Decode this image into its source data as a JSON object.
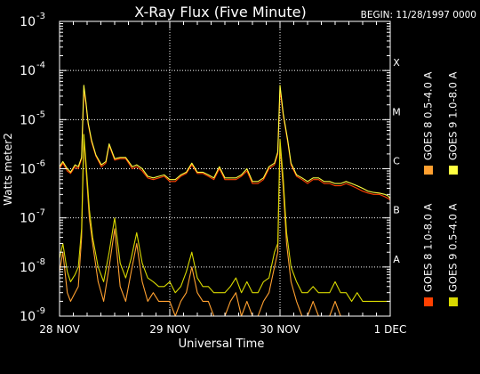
{
  "chart_data": {
    "type": "line",
    "title": "X-Ray Flux (Five Minute)",
    "begin_label": "BEGIN: 11/28/1997 0000",
    "xlabel": "Universal Time",
    "ylabel": "Watts meter2",
    "xlim": [
      0,
      3
    ],
    "ylim": [
      1e-09,
      0.001
    ],
    "yscale": "log",
    "grid": true,
    "x_ticks": [
      {
        "value": 0,
        "label": "28 NOV"
      },
      {
        "value": 1,
        "label": "29 NOV"
      },
      {
        "value": 2,
        "label": "30 NOV"
      },
      {
        "value": 3,
        "label": "1 DEC"
      }
    ],
    "y_ticks": [
      {
        "exp": -9,
        "base": "10",
        "sup": "-9"
      },
      {
        "exp": -8,
        "base": "10",
        "sup": "-8"
      },
      {
        "exp": -7,
        "base": "10",
        "sup": "-7"
      },
      {
        "exp": -6,
        "base": "10",
        "sup": "-6"
      },
      {
        "exp": -5,
        "base": "10",
        "sup": "-5"
      },
      {
        "exp": -4,
        "base": "10",
        "sup": "-4"
      },
      {
        "exp": -3,
        "base": "10",
        "sup": "-3"
      }
    ],
    "class_labels": [
      {
        "label": "A",
        "exp": -8
      },
      {
        "label": "B",
        "exp": -7
      },
      {
        "label": "C",
        "exp": -6
      },
      {
        "label": "M",
        "exp": -5
      },
      {
        "label": "X",
        "exp": -4
      }
    ],
    "legend_position": "right",
    "colors": {
      "goes8_long": "#ff4000",
      "goes8_short": "#ffa030",
      "goes9_long": "#ffff40",
      "goes9_short": "#d8d800"
    },
    "series": [
      {
        "name": "GOES 8 1.0-8.0 A",
        "color_key": "goes8_long",
        "x": [
          0.0,
          0.03,
          0.07,
          0.1,
          0.14,
          0.17,
          0.2,
          0.22,
          0.24,
          0.26,
          0.29,
          0.33,
          0.38,
          0.42,
          0.45,
          0.5,
          0.55,
          0.6,
          0.66,
          0.7,
          0.75,
          0.8,
          0.85,
          0.9,
          0.95,
          1.0,
          1.05,
          1.1,
          1.15,
          1.2,
          1.25,
          1.3,
          1.35,
          1.4,
          1.45,
          1.5,
          1.55,
          1.6,
          1.65,
          1.7,
          1.75,
          1.8,
          1.85,
          1.9,
          1.95,
          1.98,
          2.0,
          2.03,
          2.07,
          2.1,
          2.15,
          2.2,
          2.25,
          2.3,
          2.35,
          2.4,
          2.45,
          2.5,
          2.55,
          2.6,
          2.65,
          2.7,
          2.75,
          2.8,
          2.85,
          2.9,
          2.95,
          2.98,
          3.0
        ],
        "y": [
          1e-06,
          1.3e-06,
          9e-07,
          8e-07,
          1.1e-06,
          1e-06,
          1.6e-06,
          4e-05,
          2e-05,
          8e-06,
          3.5e-06,
          1.8e-06,
          1.1e-06,
          1.3e-06,
          3e-06,
          1.5e-06,
          1.6e-06,
          1.6e-06,
          1e-06,
          1.1e-06,
          9e-07,
          6.5e-07,
          6e-07,
          6.5e-07,
          7e-07,
          5.5e-07,
          5.5e-07,
          7e-07,
          8e-07,
          1.2e-06,
          8e-07,
          8e-07,
          7e-07,
          6e-07,
          1e-06,
          6e-07,
          6e-07,
          6e-07,
          7e-07,
          9e-07,
          5e-07,
          5e-07,
          6e-07,
          1e-06,
          1.2e-06,
          2e-06,
          4e-05,
          1.2e-05,
          3.5e-06,
          1.2e-06,
          7e-07,
          6e-07,
          5e-07,
          6e-07,
          6e-07,
          5e-07,
          5e-07,
          4.5e-07,
          4.5e-07,
          5e-07,
          4.5e-07,
          4e-07,
          3.5e-07,
          3.2e-07,
          3e-07,
          3e-07,
          2.7e-07,
          2.5e-07,
          2.3e-07
        ]
      },
      {
        "name": "GOES 8 0.5-4.0 A",
        "color_key": "goes8_short",
        "x": [
          0.0,
          0.03,
          0.07,
          0.1,
          0.14,
          0.17,
          0.2,
          0.22,
          0.24,
          0.27,
          0.3,
          0.35,
          0.4,
          0.45,
          0.5,
          0.55,
          0.6,
          0.65,
          0.7,
          0.75,
          0.8,
          0.85,
          0.9,
          0.95,
          1.0,
          1.05,
          1.1,
          1.15,
          1.2,
          1.25,
          1.3,
          1.35,
          1.4,
          1.45,
          1.5,
          1.55,
          1.6,
          1.65,
          1.7,
          1.75,
          1.8,
          1.85,
          1.9,
          1.95,
          1.98,
          2.0,
          2.03,
          2.06,
          2.1,
          2.15,
          2.2,
          2.25,
          2.3,
          2.35,
          2.4,
          2.45,
          2.5,
          2.55,
          2.6,
          2.65,
          2.7,
          2.75,
          2.8,
          2.85,
          2.9,
          2.95,
          3.0
        ],
        "y": [
          8e-09,
          2e-08,
          3e-09,
          2e-09,
          3e-09,
          4e-09,
          4e-08,
          4e-06,
          1e-06,
          1e-07,
          3e-08,
          5e-09,
          2e-09,
          1e-08,
          6e-08,
          4e-09,
          2e-09,
          8e-09,
          3e-08,
          5e-09,
          2e-09,
          3e-09,
          2e-09,
          2e-09,
          2e-09,
          1e-09,
          2e-09,
          3e-09,
          1e-08,
          3e-09,
          2e-09,
          2e-09,
          1e-09,
          1e-09,
          1e-09,
          2e-09,
          3e-09,
          1e-09,
          2e-09,
          1e-09,
          1e-09,
          2e-09,
          3e-09,
          1e-08,
          2e-08,
          3e-06,
          4e-07,
          3e-08,
          5e-09,
          2e-09,
          1e-09,
          1e-09,
          2e-09,
          1e-09,
          1e-09,
          1e-09,
          2e-09,
          1e-09,
          1e-09,
          1e-09,
          1e-09,
          1e-09,
          1e-09,
          1e-09,
          1e-09,
          1e-09,
          1e-09
        ]
      },
      {
        "name": "GOES 9 1.0-8.0 A",
        "color_key": "goes9_long",
        "x": [
          0.0,
          0.03,
          0.07,
          0.1,
          0.14,
          0.17,
          0.2,
          0.22,
          0.24,
          0.26,
          0.29,
          0.33,
          0.38,
          0.42,
          0.45,
          0.5,
          0.55,
          0.6,
          0.66,
          0.7,
          0.75,
          0.8,
          0.85,
          0.9,
          0.95,
          1.0,
          1.05,
          1.1,
          1.15,
          1.2,
          1.25,
          1.3,
          1.35,
          1.4,
          1.45,
          1.5,
          1.55,
          1.6,
          1.65,
          1.7,
          1.75,
          1.8,
          1.85,
          1.9,
          1.95,
          1.98,
          2.0,
          2.03,
          2.07,
          2.1,
          2.15,
          2.2,
          2.25,
          2.3,
          2.35,
          2.4,
          2.45,
          2.5,
          2.55,
          2.6,
          2.65,
          2.7,
          2.75,
          2.8,
          2.85,
          2.9,
          2.95,
          2.98,
          3.0
        ],
        "y": [
          1.1e-06,
          1.4e-06,
          1e-06,
          8.5e-07,
          1.2e-06,
          1.1e-06,
          1.7e-06,
          5e-05,
          2.2e-05,
          8.5e-06,
          3.8e-06,
          1.9e-06,
          1.2e-06,
          1.4e-06,
          3.2e-06,
          1.6e-06,
          1.7e-06,
          1.7e-06,
          1.1e-06,
          1.2e-06,
          1e-06,
          7e-07,
          6.5e-07,
          7e-07,
          7.5e-07,
          6e-07,
          6e-07,
          7.5e-07,
          8.5e-07,
          1.3e-06,
          8.5e-07,
          8.5e-07,
          7.5e-07,
          6.5e-07,
          1.1e-06,
          6.5e-07,
          6.5e-07,
          6.5e-07,
          7.5e-07,
          1e-06,
          5.5e-07,
          5.5e-07,
          6.5e-07,
          1.1e-06,
          1.3e-06,
          2.2e-06,
          5e-05,
          1.3e-05,
          3.8e-06,
          1.3e-06,
          7.5e-07,
          6.5e-07,
          5.5e-07,
          6.5e-07,
          6.5e-07,
          5.5e-07,
          5.5e-07,
          5e-07,
          5e-07,
          5.5e-07,
          5e-07,
          4.5e-07,
          4e-07,
          3.5e-07,
          3.3e-07,
          3.2e-07,
          3e-07,
          2.8e-07,
          2.5e-07
        ]
      },
      {
        "name": "GOES 9 0.5-4.0 A",
        "color_key": "goes9_short",
        "x": [
          0.0,
          0.03,
          0.07,
          0.1,
          0.14,
          0.17,
          0.2,
          0.22,
          0.24,
          0.27,
          0.3,
          0.35,
          0.4,
          0.45,
          0.5,
          0.55,
          0.6,
          0.65,
          0.7,
          0.75,
          0.8,
          0.85,
          0.9,
          0.95,
          1.0,
          1.05,
          1.1,
          1.15,
          1.2,
          1.25,
          1.3,
          1.35,
          1.4,
          1.45,
          1.5,
          1.55,
          1.6,
          1.65,
          1.7,
          1.75,
          1.8,
          1.85,
          1.9,
          1.95,
          1.98,
          2.0,
          2.03,
          2.06,
          2.1,
          2.15,
          2.2,
          2.25,
          2.3,
          2.35,
          2.4,
          2.45,
          2.5,
          2.55,
          2.6,
          2.65,
          2.7,
          2.75,
          2.8,
          2.85,
          2.9,
          2.95,
          3.0
        ],
        "y": [
          1.5e-08,
          3e-08,
          8e-09,
          5e-09,
          7e-09,
          1e-08,
          6e-08,
          5e-06,
          1.3e-06,
          1.5e-07,
          4e-08,
          1e-08,
          5e-09,
          2e-08,
          1e-07,
          1.2e-08,
          6e-09,
          1.5e-08,
          5e-08,
          1.2e-08,
          6e-09,
          5e-09,
          4e-09,
          4e-09,
          5e-09,
          3e-09,
          4e-09,
          8e-09,
          2e-08,
          6e-09,
          4e-09,
          4e-09,
          3e-09,
          3e-09,
          3e-09,
          4e-09,
          6e-09,
          3e-09,
          5e-09,
          3e-09,
          3e-09,
          5e-09,
          6e-09,
          2e-08,
          3e-08,
          4e-06,
          6e-07,
          5e-08,
          1e-08,
          5e-09,
          3e-09,
          3e-09,
          4e-09,
          3e-09,
          3e-09,
          3e-09,
          5e-09,
          3e-09,
          3e-09,
          2e-09,
          3e-09,
          2e-09,
          2e-09,
          2e-09,
          2e-09,
          2e-09,
          2e-09
        ]
      }
    ]
  }
}
